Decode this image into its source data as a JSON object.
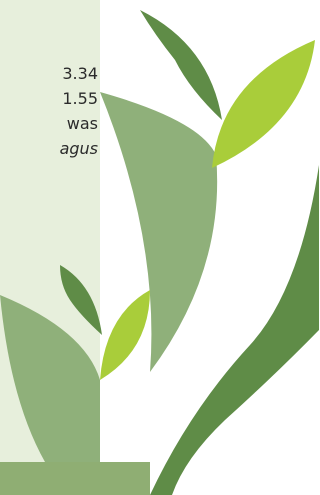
{
  "text_lines": [
    "3.34",
    "1.55",
    "was",
    "agus"
  ]
}
